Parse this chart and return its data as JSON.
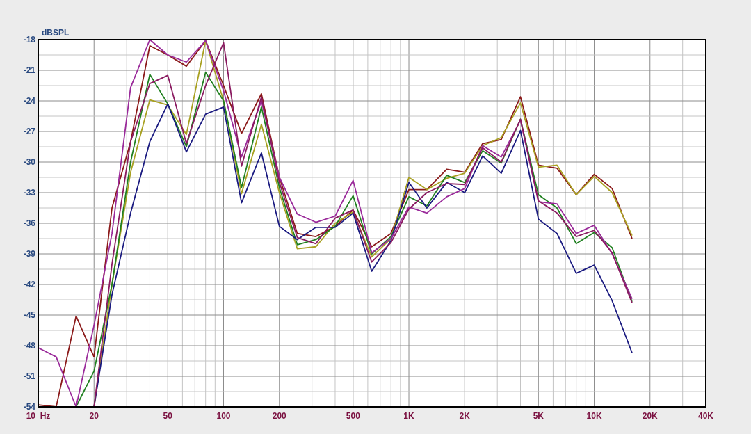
{
  "chart_data": {
    "type": "line",
    "ylabel": "dBSPL",
    "x": [
      10,
      12.5,
      16,
      20,
      25,
      31.5,
      40,
      50,
      63,
      80,
      100,
      125,
      160,
      200,
      250,
      315,
      400,
      500,
      630,
      800,
      1000,
      1250,
      1600,
      2000,
      2500,
      3150,
      4000,
      5000,
      6300,
      8000,
      10000,
      12500,
      16000
    ],
    "log": "x",
    "xlim": [
      10,
      40000
    ],
    "ylim": [
      -54,
      -18
    ],
    "xticks": [
      {
        "value": 10,
        "label": "10  Hz"
      },
      20,
      {
        "value": 30,
        "label": null
      },
      {
        "value": 40,
        "label": null
      },
      50,
      {
        "value": 60,
        "label": null
      },
      {
        "value": 70,
        "label": null
      },
      {
        "value": 80,
        "label": null
      },
      {
        "value": 90,
        "label": null
      },
      100,
      200,
      {
        "value": 300,
        "label": null
      },
      {
        "value": 400,
        "label": null
      },
      500,
      {
        "value": 600,
        "label": null
      },
      {
        "value": 700,
        "label": null
      },
      {
        "value": 800,
        "label": null
      },
      {
        "value": 900,
        "label": null
      },
      {
        "value": 1000,
        "label": "1K"
      },
      {
        "value": 2000,
        "label": "2K"
      },
      {
        "value": 3000,
        "label": null
      },
      {
        "value": 4000,
        "label": null
      },
      {
        "value": 5000,
        "label": "5K"
      },
      {
        "value": 6000,
        "label": null
      },
      {
        "value": 7000,
        "label": null
      },
      {
        "value": 8000,
        "label": null
      },
      {
        "value": 9000,
        "label": null
      },
      {
        "value": 10000,
        "label": "10K"
      },
      {
        "value": 20000,
        "label": "20K"
      },
      {
        "value": 30000,
        "label": null
      },
      {
        "value": 40000,
        "label": "40K"
      }
    ],
    "yticks": [
      -18,
      {
        "value": -19.5,
        "label": null
      },
      -21,
      {
        "value": -22.5,
        "label": null
      },
      -24,
      {
        "value": -25.5,
        "label": null
      },
      -27,
      {
        "value": -28.5,
        "label": null
      },
      -30,
      {
        "value": -31.5,
        "label": null
      },
      -33,
      {
        "value": -34.5,
        "label": null
      },
      -36,
      {
        "value": -37.5,
        "label": null
      },
      -39,
      {
        "value": -40.5,
        "label": null
      },
      -42,
      {
        "value": -43.5,
        "label": null
      },
      -45,
      {
        "value": -46.5,
        "label": null
      },
      -48,
      {
        "value": -49.5,
        "label": null
      },
      -51,
      {
        "value": -52.5,
        "label": null
      },
      -54
    ],
    "grid": true,
    "marker": "none",
    "line_style": "solid",
    "series": [
      {
        "color": "#8b1a1a",
        "values": [
          -53.8,
          -54,
          -45.1,
          -49.1,
          -34.5,
          -28,
          -18.6,
          -19.5,
          -20.6,
          -18.1,
          -22.5,
          -27.2,
          -23.3,
          -31.5,
          -37,
          -37.3,
          -36.3,
          -34.7,
          -38.3,
          -37,
          -32.7,
          -32.7,
          -30.7,
          -31,
          -28.2,
          -27.8,
          -23.6,
          -30.3,
          -30.6,
          -33.2,
          -31.2,
          -32.6,
          -37.5
        ]
      },
      {
        "color": "#a8a020",
        "values": [
          null,
          null,
          null,
          -54,
          -42,
          -31,
          -23.9,
          -24.4,
          -27.3,
          -18.1,
          -24,
          -33.1,
          -26.3,
          -33,
          -38.5,
          -38.3,
          -36,
          -34.9,
          -39.3,
          -37.5,
          -31.5,
          -32.7,
          -31.6,
          -31.1,
          -28.4,
          -27.6,
          -24.2,
          -30.5,
          -30.3,
          -33.2,
          -31.4,
          -33,
          -37.2
        ]
      },
      {
        "color": "#208020",
        "values": [
          null,
          null,
          -54,
          -50.5,
          -42,
          -30,
          -21.4,
          -24.3,
          -28.5,
          -21.2,
          -24,
          -32.5,
          -24.6,
          -32.5,
          -38.1,
          -37.6,
          -36.3,
          -33.3,
          -39,
          -37.3,
          -33.4,
          -34.3,
          -31.3,
          -32,
          -28.9,
          -30.1,
          -25.8,
          -33.2,
          -34.5,
          -38,
          -36.9,
          -38.4,
          -43.7
        ]
      },
      {
        "color": "#1a1a80",
        "values": [
          null,
          null,
          null,
          -54,
          -43,
          -35,
          -28,
          -24.3,
          -29,
          -25.3,
          -24.6,
          -34,
          -29.1,
          -36.3,
          -37.6,
          -36.4,
          -36.4,
          -35,
          -40.7,
          -37.7,
          -32,
          -34.5,
          -32,
          -33,
          -29.4,
          -31.1,
          -26.9,
          -35.6,
          -37,
          -40.9,
          -40.1,
          -43.6,
          -48.7
        ]
      },
      {
        "color": "#9a2a9a",
        "values": [
          -48.2,
          -49.1,
          -54,
          -46,
          -37,
          -22.7,
          -18,
          -19.5,
          -20.2,
          -18.1,
          -23,
          -29.5,
          -24,
          -31.5,
          -35.1,
          -35.9,
          -35.3,
          -31.8,
          -38.9,
          -37.5,
          -34.4,
          -35,
          -33.4,
          -32.6,
          -28.4,
          -29.5,
          -25.9,
          -33.9,
          -34.1,
          -37,
          -36.2,
          -39,
          -43.4
        ]
      },
      {
        "color": "#8a1a60",
        "values": [
          null,
          null,
          null,
          -54,
          -40,
          -28,
          -22.3,
          -21.5,
          -28.2,
          -22.5,
          -18.3,
          -30.4,
          -23.6,
          -32,
          -37.4,
          -38,
          -35.5,
          -34.7,
          -39.8,
          -37.9,
          -34.6,
          -33,
          -32.1,
          -32.2,
          -28.6,
          -30,
          -25.8,
          -33.8,
          -35,
          -37.3,
          -36.7,
          -38.9,
          -43.8
        ]
      }
    ]
  }
}
